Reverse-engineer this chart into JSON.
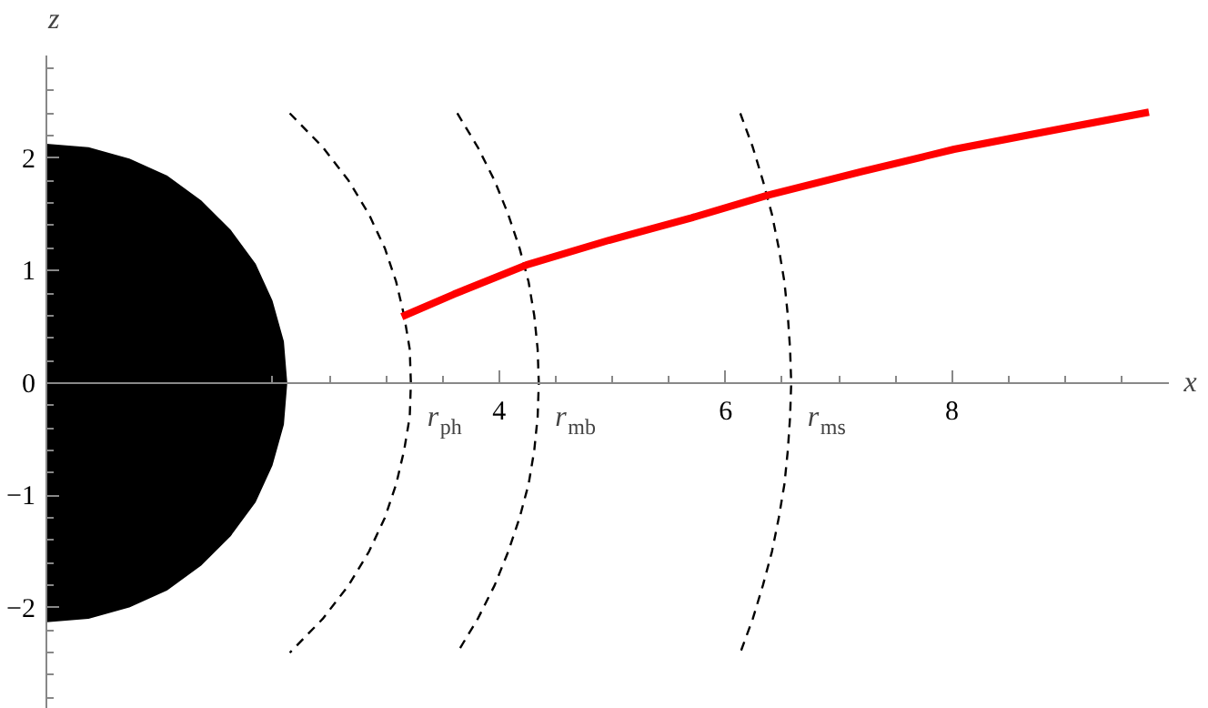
{
  "chart_data": {
    "type": "line",
    "xlabel": "x",
    "ylabel": "z",
    "xlim": [
      0,
      9.92
    ],
    "ylim": [
      -2.9,
      2.92
    ],
    "xticks": [
      {
        "value": 2,
        "label": null
      },
      {
        "value": 2.5,
        "label": null
      },
      {
        "value": 3,
        "label": null
      },
      {
        "value": 3.5,
        "label": null
      },
      4,
      {
        "value": 4.5,
        "label": null
      },
      {
        "value": 5,
        "label": null
      },
      {
        "value": 5.5,
        "label": null
      },
      6,
      {
        "value": 6.5,
        "label": null
      },
      {
        "value": 7,
        "label": null
      },
      {
        "value": 7.5,
        "label": null
      },
      8,
      {
        "value": 8.5,
        "label": null
      },
      {
        "value": 9,
        "label": null
      },
      {
        "value": 9.5,
        "label": null
      }
    ],
    "yticks": [
      -2,
      -1,
      0,
      1,
      2,
      {
        "value": -2.8,
        "label": null
      },
      {
        "value": -2.6,
        "label": null
      },
      {
        "value": -2.4,
        "label": null
      },
      {
        "value": -2.2,
        "label": null
      },
      {
        "value": -1.8,
        "label": null
      },
      {
        "value": -1.6,
        "label": null
      },
      {
        "value": -1.4,
        "label": null
      },
      {
        "value": -1.2,
        "label": null
      },
      {
        "value": -0.8,
        "label": null
      },
      {
        "value": -0.6,
        "label": null
      },
      {
        "value": -0.4,
        "label": null
      },
      {
        "value": -0.2,
        "label": null
      },
      {
        "value": 0.2,
        "label": null
      },
      {
        "value": 0.4,
        "label": null
      },
      {
        "value": 0.6,
        "label": null
      },
      {
        "value": 0.8,
        "label": null
      },
      {
        "value": 1.2,
        "label": null
      },
      {
        "value": 1.4,
        "label": null
      },
      {
        "value": 1.6,
        "label": null
      },
      {
        "value": 1.8,
        "label": null
      },
      {
        "value": 2.2,
        "label": null
      },
      {
        "value": 2.4,
        "label": null
      },
      {
        "value": 2.6,
        "label": null
      },
      {
        "value": 2.8,
        "label": null
      }
    ],
    "series": [
      {
        "type": "area",
        "color": "#000000",
        "x": [
          0,
          0.37,
          0.73,
          1.06,
          1.36,
          1.62,
          1.84,
          1.99,
          2.09,
          2.12,
          2.09,
          1.99,
          1.84,
          1.62,
          1.36,
          1.06,
          0.73,
          0.37,
          0
        ],
        "values": [
          2.12,
          2.09,
          1.99,
          1.84,
          1.62,
          1.36,
          1.06,
          0.73,
          0.37,
          0,
          -0.37,
          -0.73,
          -1.06,
          -1.36,
          -1.62,
          -1.84,
          -1.99,
          -2.09,
          -2.12
        ]
      },
      {
        "line_style": "dashed",
        "color": "#000000",
        "x": [
          2.15,
          2.44,
          2.67,
          2.85,
          2.99,
          3.09,
          3.16,
          3.21,
          3.22,
          3.21,
          3.16,
          3.09,
          2.99,
          2.85,
          2.67,
          2.44,
          2.15
        ],
        "values": [
          2.4,
          2.1,
          1.8,
          1.5,
          1.2,
          0.9,
          0.6,
          0.3,
          0,
          -0.3,
          -0.6,
          -0.9,
          -1.2,
          -1.5,
          -1.8,
          -2.1,
          -2.4
        ]
      },
      {
        "line_style": "dashed",
        "color": "#000000",
        "x": [
          3.63,
          3.81,
          3.96,
          4.08,
          4.18,
          4.26,
          4.31,
          4.34,
          4.35,
          4.34,
          4.31,
          4.26,
          4.18,
          4.08,
          3.96,
          3.81,
          3.63
        ],
        "values": [
          2.4,
          2.1,
          1.8,
          1.5,
          1.2,
          0.9,
          0.6,
          0.3,
          0,
          -0.3,
          -0.6,
          -0.9,
          -1.2,
          -1.5,
          -1.8,
          -2.1,
          -2.4
        ]
      },
      {
        "line_style": "dashed",
        "color": "#000000",
        "x": [
          6.13,
          6.24,
          6.33,
          6.41,
          6.47,
          6.52,
          6.55,
          6.57,
          6.58,
          6.57,
          6.55,
          6.52,
          6.47,
          6.41,
          6.33,
          6.24,
          6.13
        ],
        "values": [
          2.4,
          2.1,
          1.8,
          1.5,
          1.2,
          0.9,
          0.6,
          0.3,
          0,
          -0.3,
          -0.6,
          -0.9,
          -1.2,
          -1.5,
          -1.8,
          -2.1,
          -2.4
        ]
      },
      {
        "line_style": "solid",
        "color": "#ff0000",
        "x": [
          3.14,
          3.6,
          4.24,
          4.97,
          5.7,
          6.37,
          7.2,
          8.02,
          8.9,
          9.74
        ],
        "values": [
          0.59,
          0.79,
          1.05,
          1.27,
          1.47,
          1.67,
          1.88,
          2.08,
          2.25,
          2.41
        ]
      }
    ],
    "annotations": [
      {
        "text": "r$_{ph}$",
        "x": 3.22,
        "y": 0
      },
      {
        "text": "r$_{mb}$",
        "x": 4.35,
        "y": 0
      },
      {
        "text": "r$_{ms}$",
        "x": 6.58,
        "y": 0
      }
    ]
  }
}
